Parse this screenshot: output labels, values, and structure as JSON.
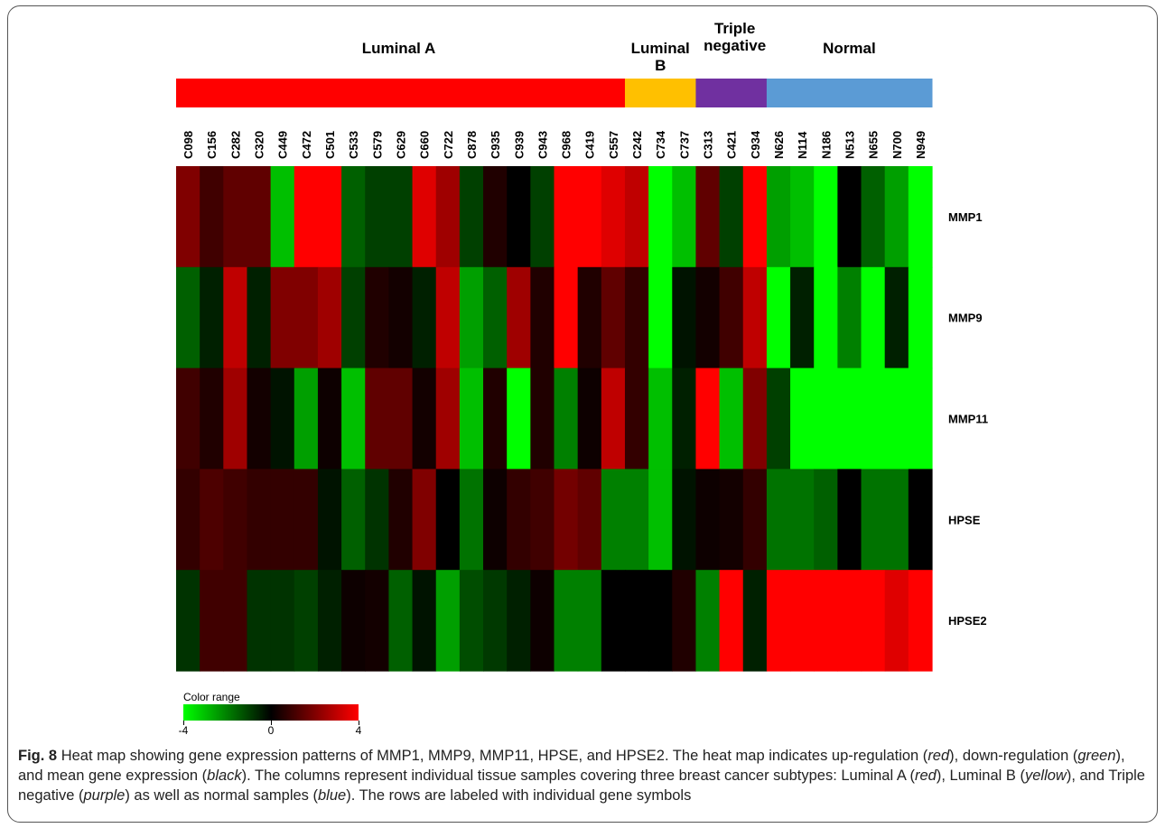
{
  "chart_data": {
    "type": "heatmap",
    "groups": [
      {
        "name": "Luminal A",
        "color": "#ff0000",
        "count": 19
      },
      {
        "name": "Luminal B",
        "color": "#ffc000",
        "count": 3
      },
      {
        "name": "Triple negative",
        "color": "#7030a0",
        "count": 3
      },
      {
        "name": "Normal",
        "color": "#5b9bd5",
        "count": 7
      }
    ],
    "columns": [
      "C098",
      "C156",
      "C282",
      "C320",
      "C449",
      "C472",
      "C501",
      "C533",
      "C579",
      "C629",
      "C660",
      "C722",
      "C878",
      "C935",
      "C939",
      "C943",
      "C968",
      "C419",
      "C557",
      "C242",
      "C734",
      "C737",
      "C313",
      "C421",
      "C934",
      "N626",
      "N114",
      "N186",
      "N513",
      "N655",
      "N700",
      "N949"
    ],
    "rows": [
      "MMP1",
      "MMP9",
      "MMP11",
      "HPSE",
      "HPSE2"
    ],
    "values": [
      [
        2,
        1,
        1.5,
        1.5,
        -3,
        4,
        4,
        -1.5,
        -1,
        -1,
        3.5,
        2.5,
        -1,
        0.5,
        0,
        -1,
        4,
        4,
        3.5,
        3,
        -4,
        -3,
        1.5,
        -1,
        4,
        -2.5,
        -3,
        -4,
        0,
        -1.5,
        -2.5,
        -4
      ],
      [
        -1.5,
        -0.5,
        3,
        -0.5,
        2,
        2,
        2.5,
        -1,
        0.5,
        0.3,
        -0.5,
        3,
        -2.5,
        -1.5,
        2.5,
        0.5,
        4,
        0.5,
        1.5,
        0.8,
        -4,
        -0.3,
        0.3,
        1,
        3,
        -4,
        -0.5,
        -4,
        -2,
        -4,
        -0.5,
        -4
      ],
      [
        1,
        0.5,
        2.5,
        0.3,
        -0.3,
        -2.5,
        0.2,
        -3,
        1.5,
        1.5,
        0.3,
        2.5,
        -3,
        0.5,
        -4,
        0.5,
        -2,
        0.2,
        3,
        0.8,
        -3,
        -0.5,
        4,
        -3,
        2,
        -1,
        -4,
        -4,
        -4,
        -4,
        -4,
        -4
      ],
      [
        0.8,
        1.2,
        1,
        0.8,
        0.8,
        0.8,
        -0.3,
        -1.5,
        -0.8,
        0.5,
        2,
        0,
        -1.8,
        0.2,
        0.8,
        1,
        1.8,
        1.5,
        -2,
        -2,
        -3,
        -0.3,
        0.2,
        0.3,
        0.8,
        -1.8,
        -1.8,
        -1.5,
        0,
        -1.8,
        -1.8,
        0
      ],
      [
        -0.8,
        1,
        1,
        -0.8,
        -0.8,
        -1,
        -0.5,
        0.2,
        0.3,
        -1.5,
        -0.3,
        -2.5,
        -1.2,
        -0.9,
        -0.5,
        0.2,
        -2,
        -2,
        0,
        0,
        0,
        0.5,
        -2,
        4,
        -0.5,
        4,
        4,
        4,
        4,
        4,
        3.5,
        4
      ]
    ],
    "colorRange": {
      "title": "Color range",
      "min": -4,
      "mid": 0,
      "max": 4,
      "ticks": [
        "-4",
        "0",
        "4"
      ]
    },
    "lowColor": "#00ff00",
    "midColor": "#000000",
    "highColor": "#ff0000"
  },
  "caption": {
    "fig_label": "Fig. 8",
    "lines": [
      "Heat map showing gene expression patterns of MMP1, MMP9, MMP11, HPSE, and HPSE2. The heat map indicates up-regulation (",
      "red",
      "), down-regulation (",
      "green",
      "), and mean gene expression (",
      "black",
      "). The columns represent individual tissue samples covering three breast cancer subtypes: Luminal A (",
      "red",
      "), Luminal B (",
      "yellow",
      "), and Triple negative (",
      "purple",
      ") as well as normal samples (",
      "blue",
      "). The rows are labeled with individual gene symbols"
    ]
  }
}
